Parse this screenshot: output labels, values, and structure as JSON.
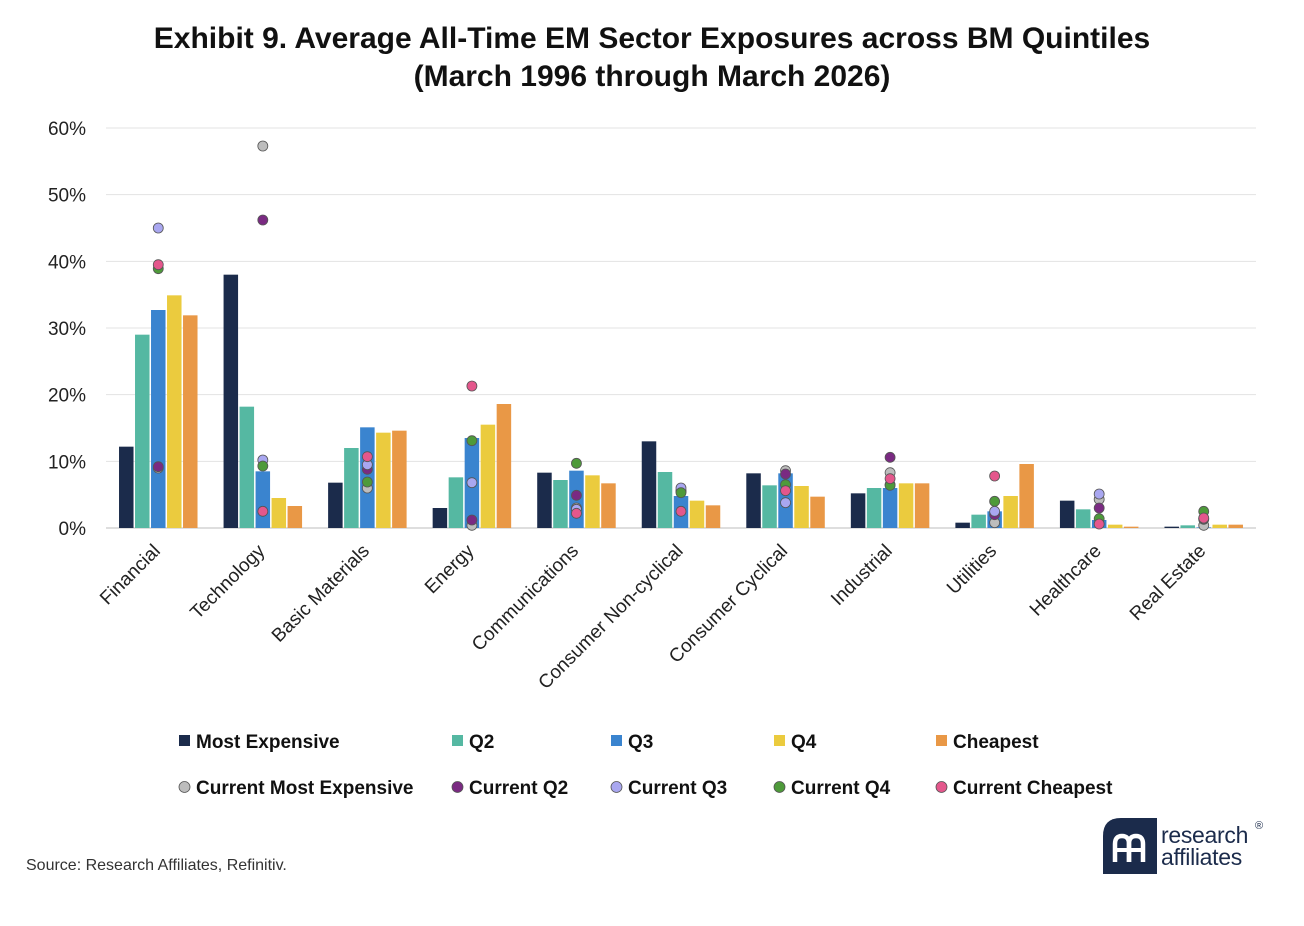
{
  "title": {
    "line1": "Exhibit 9. Average All-Time EM Sector Exposures across BM Quintiles",
    "line2": "(March 1996 through March 2026)"
  },
  "source": "Source: Research Affiliates, Refinitiv.",
  "logo": {
    "line1": "research",
    "line2": "affiliates",
    "reg": "®"
  },
  "colors": {
    "Most Expensive": "#1b2b4b",
    "Q2": "#55b8a2",
    "Q3": "#3a84cf",
    "Q4": "#ebcb3e",
    "Cheapest": "#e99846",
    "Current Most Expensive": "#bdbdbd",
    "Current Q2": "#7a2a82",
    "Current Q3": "#a9a7f0",
    "Current Q4": "#4e9a3a",
    "Current Cheapest": "#e4578c"
  },
  "chart_data": {
    "type": "bar",
    "title": "Exhibit 9. Average All-Time EM Sector Exposures across BM Quintiles (March 1996 through March 2026)",
    "ylim": [
      0,
      60
    ],
    "yticks": [
      0,
      10,
      20,
      30,
      40,
      50,
      60
    ],
    "ytick_labels": [
      "0%",
      "10%",
      "20%",
      "30%",
      "40%",
      "50%",
      "60%"
    ],
    "grid": "horizontal",
    "legend_position": "bottom",
    "categories": [
      "Financial",
      "Technology",
      "Basic Materials",
      "Energy",
      "Communications",
      "Consumer Non-cyclical",
      "Consumer Cyclical",
      "Industrial",
      "Utilities",
      "Healthcare",
      "Real Estate"
    ],
    "series": [
      {
        "name": "Most Expensive",
        "values": [
          12.2,
          38.0,
          6.8,
          3.0,
          8.3,
          13.0,
          8.2,
          5.2,
          0.8,
          4.1,
          0.2
        ]
      },
      {
        "name": "Q2",
        "values": [
          29.0,
          18.2,
          12.0,
          7.6,
          7.2,
          8.4,
          6.4,
          6.0,
          2.0,
          2.8,
          0.4
        ]
      },
      {
        "name": "Q3",
        "values": [
          32.7,
          8.5,
          15.1,
          13.5,
          8.6,
          4.8,
          8.2,
          6.0,
          2.5,
          1.2,
          0.1
        ]
      },
      {
        "name": "Q4",
        "values": [
          34.9,
          4.5,
          14.3,
          15.5,
          7.9,
          4.1,
          6.3,
          6.7,
          4.8,
          0.5,
          0.5
        ]
      },
      {
        "name": "Cheapest",
        "values": [
          31.9,
          3.3,
          14.6,
          18.6,
          6.7,
          3.4,
          4.7,
          6.7,
          9.6,
          0.2,
          0.5
        ]
      }
    ],
    "points": [
      {
        "name": "Current Most Expensive",
        "values": [
          9.0,
          57.3,
          6.0,
          0.4,
          3.0,
          5.5,
          8.6,
          8.3,
          0.8,
          4.3,
          0.4
        ]
      },
      {
        "name": "Current Q2",
        "values": [
          9.2,
          46.2,
          8.8,
          1.2,
          4.9,
          5.6,
          8.1,
          10.6,
          2.0,
          3.0,
          1.3
        ]
      },
      {
        "name": "Current Q3",
        "values": [
          45.0,
          10.2,
          9.5,
          6.8,
          2.8,
          6.0,
          3.8,
          6.5,
          2.5,
          5.1,
          1.4
        ]
      },
      {
        "name": "Current Q4",
        "values": [
          38.9,
          9.3,
          6.9,
          13.1,
          9.7,
          5.3,
          6.5,
          6.4,
          4.0,
          1.4,
          2.5
        ]
      },
      {
        "name": "Current Cheapest",
        "values": [
          39.5,
          2.5,
          10.7,
          21.3,
          2.2,
          2.5,
          5.6,
          7.4,
          7.8,
          0.6,
          1.5
        ]
      }
    ]
  }
}
